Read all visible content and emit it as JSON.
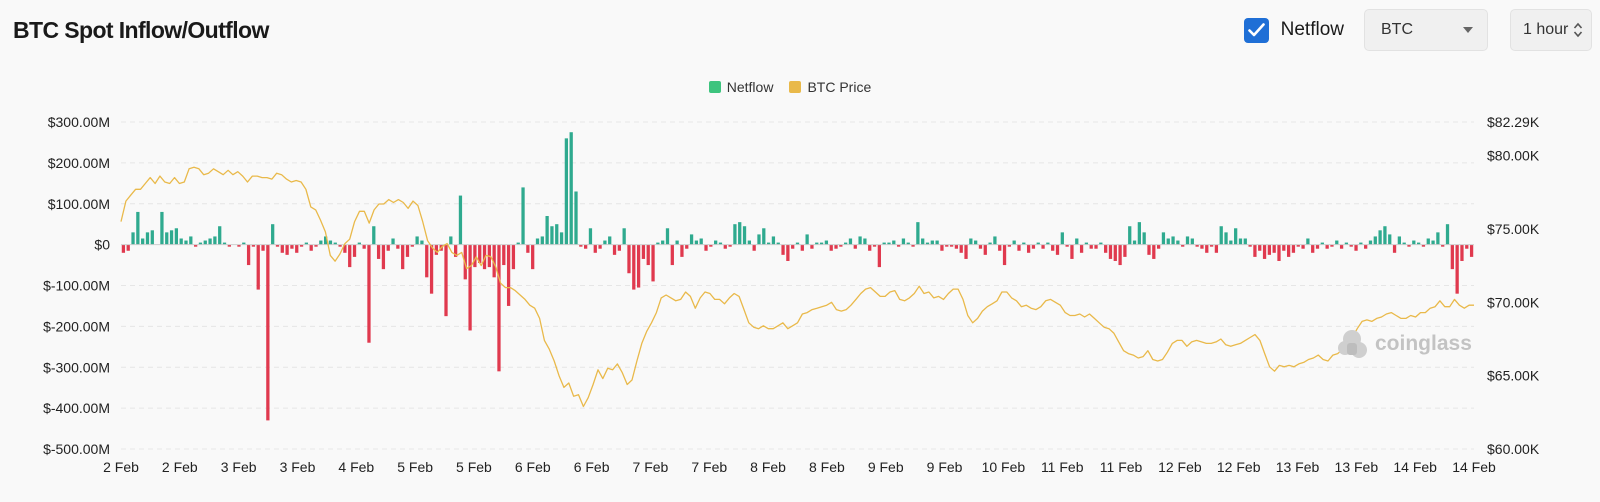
{
  "header": {
    "title": "BTC Spot Inflow/Outflow",
    "netflow_toggle": {
      "label": "Netflow",
      "checked": true
    },
    "coin_select": {
      "value": "BTC"
    },
    "interval_select": {
      "value": "1 hour"
    }
  },
  "watermark": "coinglass",
  "colors": {
    "positive": "#2faa8f",
    "negative": "#e0394e",
    "legend_netflow": "#3dc47e",
    "price": "#e9b94a",
    "accent": "#1f6fd6"
  },
  "chart_data": {
    "type": "bar+line",
    "legend": [
      "Netflow",
      "BTC Price"
    ],
    "x_tick_labels": [
      "2 Feb",
      "2 Feb",
      "3 Feb",
      "3 Feb",
      "4 Feb",
      "5 Feb",
      "5 Feb",
      "6 Feb",
      "6 Feb",
      "7 Feb",
      "7 Feb",
      "8 Feb",
      "8 Feb",
      "9 Feb",
      "9 Feb",
      "10 Feb",
      "11 Feb",
      "11 Feb",
      "12 Feb",
      "12 Feb",
      "13 Feb",
      "13 Feb",
      "14 Feb",
      "14 Feb"
    ],
    "y_left": {
      "ticks": [
        300,
        200,
        100,
        0,
        -100,
        -200,
        -300,
        -400,
        -500
      ],
      "labels": [
        "$300.00M",
        "$200.00M",
        "$100.00M",
        "$0",
        "$-100.00M",
        "$-200.00M",
        "$-300.00M",
        "$-400.00M",
        "$-500.00M"
      ],
      "range": [
        -500,
        300
      ],
      "unit": "USD millions"
    },
    "y_right": {
      "ticks": [
        82.29,
        80,
        75,
        70,
        65,
        60
      ],
      "labels": [
        "$82.29K",
        "$80.00K",
        "$75.00K",
        "$70.00K",
        "$65.00K",
        "$60.00K"
      ],
      "range": [
        60,
        82.29
      ],
      "unit": "USD thousands"
    },
    "grid": true,
    "netflow_series": [
      -20,
      -15,
      30,
      80,
      15,
      30,
      35,
      0,
      80,
      30,
      35,
      40,
      15,
      10,
      20,
      -5,
      5,
      10,
      15,
      20,
      45,
      5,
      -5,
      0,
      -5,
      5,
      -50,
      -5,
      -110,
      -15,
      -430,
      50,
      -5,
      -20,
      -25,
      -10,
      -20,
      -5,
      5,
      -15,
      -5,
      10,
      20,
      10,
      5,
      -5,
      -20,
      -55,
      -30,
      5,
      -10,
      -240,
      45,
      -35,
      -60,
      -15,
      15,
      -10,
      -60,
      -30,
      -5,
      20,
      10,
      -80,
      -120,
      -25,
      -15,
      -175,
      20,
      -30,
      120,
      -85,
      -210,
      -55,
      -45,
      -60,
      -55,
      -80,
      -310,
      -50,
      -150,
      -60,
      5,
      140,
      -20,
      -60,
      15,
      20,
      70,
      45,
      50,
      30,
      260,
      275,
      130,
      -5,
      -10,
      40,
      -20,
      -10,
      10,
      20,
      -25,
      -15,
      40,
      -70,
      -110,
      -105,
      -35,
      -50,
      -90,
      5,
      10,
      40,
      -50,
      10,
      -30,
      -10,
      25,
      10,
      15,
      -15,
      -5,
      10,
      5,
      -10,
      -5,
      50,
      55,
      45,
      10,
      -15,
      25,
      40,
      5,
      20,
      5,
      -25,
      -40,
      -10,
      5,
      -15,
      25,
      -10,
      5,
      5,
      10,
      -15,
      -10,
      -5,
      5,
      15,
      -10,
      20,
      15,
      -15,
      -5,
      -55,
      5,
      5,
      10,
      -5,
      15,
      5,
      -5,
      55,
      15,
      5,
      10,
      10,
      -15,
      -5,
      -5,
      -10,
      -20,
      -35,
      15,
      10,
      -10,
      -25,
      5,
      20,
      -15,
      -50,
      -5,
      10,
      -15,
      5,
      -20,
      -10,
      5,
      -10,
      5,
      -15,
      -25,
      30,
      -5,
      -35,
      15,
      -20,
      5,
      -10,
      -10,
      5,
      -20,
      -35,
      -40,
      -50,
      -30,
      45,
      10,
      55,
      30,
      -25,
      -35,
      -10,
      30,
      15,
      20,
      10,
      -5,
      20,
      15,
      -5,
      -10,
      -20,
      -5,
      -20,
      45,
      30,
      10,
      40,
      15,
      15,
      -5,
      -30,
      -15,
      -35,
      -25,
      -20,
      -40,
      -15,
      -30,
      -20,
      -5,
      -10,
      15,
      -20,
      -10,
      5,
      -10,
      -5,
      10,
      -10,
      5,
      -5,
      -15,
      5,
      -10,
      10,
      20,
      35,
      45,
      25,
      -20,
      20,
      5,
      -5,
      10,
      5,
      -5,
      15,
      10,
      30,
      -5,
      50,
      -60,
      -120,
      -40,
      -10,
      -30
    ],
    "price_series": [
      75.5,
      76.9,
      77.3,
      77.7,
      77.7,
      78.1,
      78.5,
      78.1,
      78.6,
      78.2,
      78.1,
      78.5,
      78.1,
      78.2,
      79.1,
      79.2,
      79.1,
      78.7,
      78.8,
      79.1,
      78.9,
      78.7,
      79.0,
      78.7,
      78.9,
      78.6,
      78.2,
      78.6,
      78.6,
      78.5,
      78.5,
      78.4,
      78.8,
      78.7,
      78.4,
      78.2,
      78.3,
      78.2,
      77.7,
      76.5,
      76.3,
      75.6,
      74.8,
      73.2,
      72.8,
      73.3,
      74.0,
      74.3,
      75.5,
      76.2,
      76.2,
      75.4,
      76.3,
      76.7,
      76.7,
      77.0,
      76.8,
      77.0,
      76.8,
      76.4,
      76.9,
      76.6,
      75.5,
      74.2,
      73.7,
      73.4,
      73.8,
      74.0,
      73.4,
      73.2,
      73.4,
      72.3,
      72.5,
      73.1,
      72.5,
      73.2,
      73.1,
      72.4,
      71.3,
      71.0,
      71.0,
      70.8,
      70.5,
      70.2,
      69.8,
      69.6,
      68.9,
      67.4,
      66.8,
      66.0,
      65.0,
      64.2,
      64.5,
      63.6,
      63.7,
      62.9,
      63.5,
      64.4,
      65.4,
      64.8,
      65.5,
      65.4,
      65.8,
      65.2,
      64.4,
      64.7,
      66.0,
      67.2,
      68.0,
      68.6,
      69.3,
      70.3,
      70.5,
      70.3,
      70.1,
      70.2,
      70.7,
      70.4,
      69.6,
      70.3,
      70.7,
      70.6,
      70.2,
      70.2,
      69.9,
      70.3,
      70.6,
      70.4,
      69.5,
      68.6,
      68.3,
      68.2,
      68.4,
      68.2,
      68.2,
      68.4,
      68.6,
      68.2,
      68.4,
      68.6,
      69.2,
      69.3,
      69.5,
      69.6,
      69.7,
      69.8,
      70.0,
      69.5,
      69.4,
      69.5,
      69.8,
      70.2,
      70.6,
      70.9,
      71.0,
      70.7,
      70.4,
      70.4,
      70.7,
      70.8,
      70.2,
      70.1,
      70.3,
      70.6,
      71.1,
      70.6,
      70.7,
      70.3,
      70.4,
      70.2,
      70.6,
      70.9,
      70.9,
      70.2,
      69.1,
      68.6,
      68.9,
      69.4,
      69.7,
      69.9,
      70.1,
      70.7,
      70.7,
      70.3,
      70.1,
      69.7,
      69.8,
      69.6,
      69.5,
      69.7,
      70.1,
      70.2,
      70.0,
      69.8,
      69.3,
      69.1,
      69.1,
      69.2,
      69.0,
      69.2,
      68.9,
      68.6,
      68.3,
      68.2,
      67.9,
      67.3,
      66.7,
      66.5,
      66.4,
      66.2,
      66.3,
      66.7,
      66.1,
      66.0,
      66.1,
      66.6,
      67.2,
      67.4,
      67.4,
      67.0,
      67.3,
      67.4,
      67.3,
      67.2,
      67.2,
      67.3,
      67.5,
      67.1,
      67.0,
      67.1,
      67.2,
      67.4,
      67.6,
      67.8,
      67.4,
      66.5,
      65.6,
      65.3,
      65.7,
      65.6,
      65.7,
      65.6,
      65.8,
      65.9,
      66.1,
      66.2,
      66.4,
      66.1,
      66.0,
      66.4,
      66.5,
      66.8,
      67.3,
      67.6,
      68.2,
      68.7,
      68.8,
      68.7,
      68.9,
      69.0,
      69.2,
      69.3,
      69.1,
      68.9,
      68.9,
      69.1,
      69.0,
      69.3,
      69.3,
      69.6,
      69.7,
      70.1,
      69.7,
      69.7,
      70.2,
      69.8,
      69.6,
      69.8,
      69.8
    ]
  }
}
